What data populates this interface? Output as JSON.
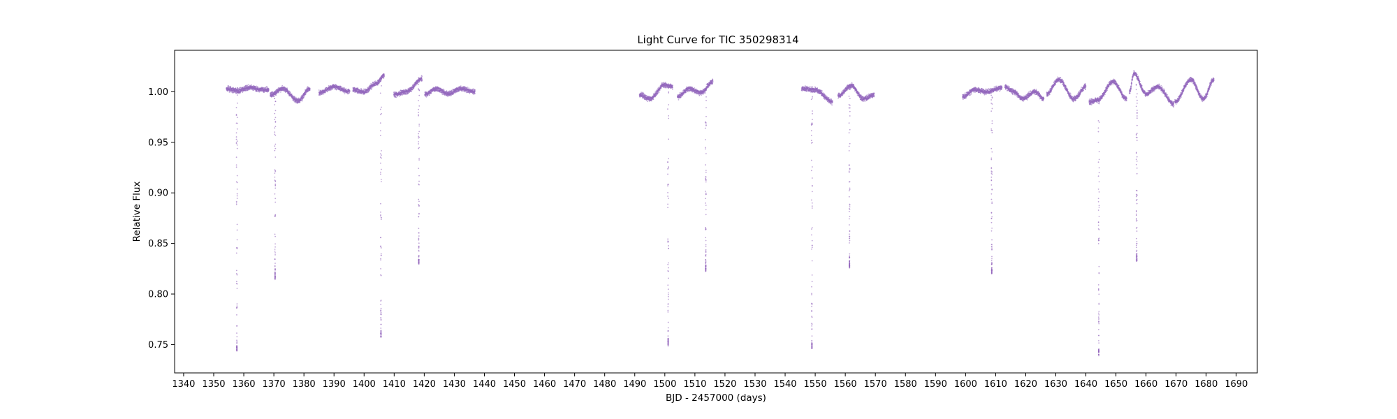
{
  "chart_data": {
    "type": "scatter",
    "title": "Light Curve for TIC 350298314",
    "xlabel": "BJD - 2457000 (days)",
    "ylabel": "Relative Flux",
    "xlim": [
      1337,
      1697
    ],
    "ylim": [
      0.722,
      1.041
    ],
    "xticks": [
      1340,
      1350,
      1360,
      1370,
      1380,
      1390,
      1400,
      1410,
      1420,
      1430,
      1440,
      1450,
      1460,
      1470,
      1480,
      1490,
      1500,
      1510,
      1520,
      1530,
      1540,
      1550,
      1560,
      1570,
      1580,
      1590,
      1600,
      1610,
      1620,
      1630,
      1640,
      1650,
      1660,
      1670,
      1680,
      1690
    ],
    "yticks": [
      0.75,
      0.8,
      0.85,
      0.9,
      0.95,
      1.0
    ],
    "grid": false,
    "marker_color": "#9467bd",
    "series": [
      {
        "segments": [
          [
            1354.2,
            1368.3
          ],
          [
            1368.8,
            1382.0
          ],
          [
            1385.0,
            1395.2
          ],
          [
            1396.3,
            1406.7
          ],
          [
            1409.9,
            1419.3
          ],
          [
            1420.2,
            1436.9
          ],
          [
            1491.6,
            1502.6
          ],
          [
            1504.2,
            1516.0
          ],
          [
            1545.5,
            1555.8
          ],
          [
            1557.6,
            1569.6
          ],
          [
            1599.0,
            1612.1
          ],
          [
            1613.1,
            1626.0
          ],
          [
            1627.0,
            1640.0
          ],
          [
            1641.1,
            1653.6
          ],
          [
            1654.5,
            1669.3
          ],
          [
            1669.6,
            1682.6
          ]
        ],
        "baseline": [
          {
            "x": 1354.2,
            "y": 1.003
          },
          {
            "x": 1358.0,
            "y": 1.001
          },
          {
            "x": 1362.0,
            "y": 1.004
          },
          {
            "x": 1366.0,
            "y": 1.002
          },
          {
            "x": 1368.3,
            "y": 1.002
          },
          {
            "x": 1368.8,
            "y": 0.997
          },
          {
            "x": 1373.0,
            "y": 1.003
          },
          {
            "x": 1378.0,
            "y": 0.991
          },
          {
            "x": 1382.0,
            "y": 1.003
          },
          {
            "x": 1385.0,
            "y": 0.999
          },
          {
            "x": 1390.0,
            "y": 1.005
          },
          {
            "x": 1395.2,
            "y": 1.0
          },
          {
            "x": 1396.3,
            "y": 1.002
          },
          {
            "x": 1400.0,
            "y": 1.0
          },
          {
            "x": 1404.0,
            "y": 1.008
          },
          {
            "x": 1406.7,
            "y": 1.016
          },
          {
            "x": 1409.9,
            "y": 0.997
          },
          {
            "x": 1414.0,
            "y": 1.0
          },
          {
            "x": 1419.3,
            "y": 1.013
          },
          {
            "x": 1420.2,
            "y": 0.997
          },
          {
            "x": 1424.0,
            "y": 1.003
          },
          {
            "x": 1428.0,
            "y": 0.998
          },
          {
            "x": 1432.0,
            "y": 1.003
          },
          {
            "x": 1436.9,
            "y": 1.0
          },
          {
            "x": 1491.6,
            "y": 0.997
          },
          {
            "x": 1495.0,
            "y": 0.993
          },
          {
            "x": 1500.0,
            "y": 1.007
          },
          {
            "x": 1502.6,
            "y": 1.005
          },
          {
            "x": 1504.2,
            "y": 0.995
          },
          {
            "x": 1508.0,
            "y": 1.003
          },
          {
            "x": 1512.0,
            "y": 0.999
          },
          {
            "x": 1516.0,
            "y": 1.01
          },
          {
            "x": 1545.5,
            "y": 1.003
          },
          {
            "x": 1550.0,
            "y": 1.002
          },
          {
            "x": 1555.8,
            "y": 0.99
          },
          {
            "x": 1557.6,
            "y": 0.996
          },
          {
            "x": 1562.0,
            "y": 1.006
          },
          {
            "x": 1566.0,
            "y": 0.993
          },
          {
            "x": 1569.6,
            "y": 0.997
          },
          {
            "x": 1599.0,
            "y": 0.995
          },
          {
            "x": 1603.0,
            "y": 1.002
          },
          {
            "x": 1607.0,
            "y": 1.0
          },
          {
            "x": 1612.1,
            "y": 1.004
          },
          {
            "x": 1613.1,
            "y": 1.005
          },
          {
            "x": 1616.0,
            "y": 1.0
          },
          {
            "x": 1619.0,
            "y": 0.993
          },
          {
            "x": 1623.0,
            "y": 1.0
          },
          {
            "x": 1626.0,
            "y": 0.993
          },
          {
            "x": 1627.0,
            "y": 0.998
          },
          {
            "x": 1631.0,
            "y": 1.012
          },
          {
            "x": 1636.0,
            "y": 0.993
          },
          {
            "x": 1640.0,
            "y": 1.005
          },
          {
            "x": 1641.1,
            "y": 0.99
          },
          {
            "x": 1644.0,
            "y": 0.992
          },
          {
            "x": 1649.0,
            "y": 1.01
          },
          {
            "x": 1653.6,
            "y": 0.993
          },
          {
            "x": 1654.5,
            "y": 1.0
          },
          {
            "x": 1656.0,
            "y": 1.018
          },
          {
            "x": 1660.0,
            "y": 0.998
          },
          {
            "x": 1664.0,
            "y": 1.005
          },
          {
            "x": 1669.3,
            "y": 0.988
          },
          {
            "x": 1669.6,
            "y": 0.99
          },
          {
            "x": 1675.0,
            "y": 1.012
          },
          {
            "x": 1679.0,
            "y": 0.993
          },
          {
            "x": 1682.6,
            "y": 1.012
          }
        ],
        "eclipses": [
          {
            "x": 1357.7,
            "depth": 0.744
          },
          {
            "x": 1370.4,
            "depth": 0.815
          },
          {
            "x": 1405.6,
            "depth": 0.758
          },
          {
            "x": 1418.2,
            "depth": 0.83
          },
          {
            "x": 1501.1,
            "depth": 0.75
          },
          {
            "x": 1513.6,
            "depth": 0.823
          },
          {
            "x": 1548.9,
            "depth": 0.746
          },
          {
            "x": 1561.4,
            "depth": 0.826
          },
          {
            "x": 1608.7,
            "depth": 0.82
          },
          {
            "x": 1644.3,
            "depth": 0.74
          },
          {
            "x": 1656.9,
            "depth": 0.833
          }
        ]
      }
    ]
  }
}
